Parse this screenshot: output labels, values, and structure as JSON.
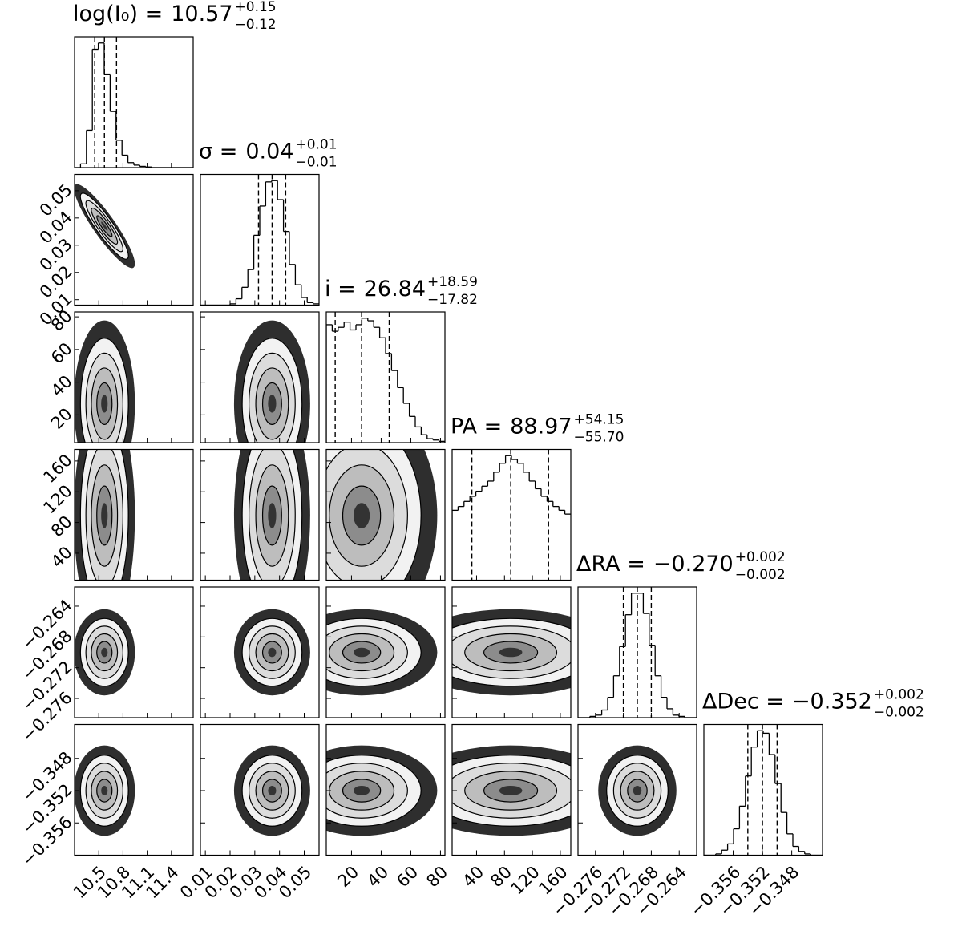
{
  "chart_data": {
    "type": "corner",
    "color": "#000000",
    "parameters": [
      {
        "label": "log(I₀) =",
        "median": 10.57,
        "err_plus": 0.15,
        "err_minus": 0.12,
        "median_label": "10.57",
        "plus_label": "+0.15",
        "minus_label": "−0.12",
        "lim": [
          10.2,
          11.67
        ],
        "ticks": [
          10.5,
          10.8,
          11.1,
          11.4
        ],
        "hist_counts": [
          0,
          3,
          30,
          95,
          100,
          75,
          45,
          22,
          10,
          4,
          2,
          1,
          0.5,
          0,
          0,
          0,
          0,
          0,
          0,
          0
        ]
      },
      {
        "label": "σ =",
        "median": 0.037,
        "err_plus": 0.0055,
        "err_minus": 0.0055,
        "median_label": "0.04",
        "plus_label": "+0.01",
        "minus_label": "−0.01",
        "lim": [
          0.008,
          0.056
        ],
        "ticks": [
          0.01,
          0.02,
          0.03,
          0.04,
          0.05
        ],
        "hist_counts": [
          0,
          0,
          0,
          0,
          0,
          1,
          5,
          14,
          28,
          55,
          78,
          97,
          98,
          83,
          58,
          32,
          16,
          6,
          2,
          1
        ]
      },
      {
        "label": "i =",
        "median": 26.84,
        "err_plus": 18.59,
        "err_minus": 17.82,
        "median_label": "26.84",
        "plus_label": "+18.59",
        "minus_label": "−17.82",
        "lim": [
          3,
          83
        ],
        "ticks": [
          20,
          40,
          60,
          80
        ],
        "hist_counts": [
          90,
          85,
          88,
          92,
          86,
          90,
          95,
          93,
          88,
          80,
          68,
          55,
          42,
          30,
          20,
          12,
          6,
          3,
          2,
          1
        ]
      },
      {
        "label": "PA =",
        "median": 88.97,
        "err_plus": 54.15,
        "err_minus": 55.7,
        "median_label": "88.97",
        "plus_label": "+54.15",
        "minus_label": "−55.70",
        "lim": [
          5,
          175
        ],
        "ticks": [
          40,
          80,
          120,
          160
        ],
        "hist_counts": [
          55,
          58,
          62,
          66,
          70,
          74,
          78,
          85,
          92,
          98,
          95,
          92,
          85,
          78,
          72,
          66,
          62,
          58,
          55,
          52
        ]
      },
      {
        "label": "ΔRA =",
        "median": -0.27,
        "err_plus": 0.002,
        "err_minus": 0.002,
        "median_label": "−0.270",
        "plus_label": "+0.002",
        "minus_label": "−0.002",
        "lim": [
          -0.2785,
          -0.2615
        ],
        "ticks": [
          {
            "value": -0.276,
            "label": "−0.276"
          },
          {
            "value": -0.272,
            "label": "−0.272"
          },
          {
            "value": -0.268,
            "label": "−0.268"
          },
          {
            "value": -0.264,
            "label": "−0.264"
          }
        ],
        "hist_counts": [
          0,
          0,
          1,
          2,
          6,
          16,
          33,
          56,
          81,
          98,
          98,
          82,
          57,
          33,
          16,
          7,
          2,
          1,
          0,
          0
        ]
      },
      {
        "label": "ΔDec =",
        "median": -0.352,
        "err_plus": 0.002,
        "err_minus": 0.002,
        "median_label": "−0.352",
        "plus_label": "+0.002",
        "minus_label": "−0.002",
        "lim": [
          -0.36,
          -0.3438
        ],
        "ticks": [
          {
            "value": -0.356,
            "label": "−0.356"
          },
          {
            "value": -0.352,
            "label": "−0.352"
          },
          {
            "value": -0.348,
            "label": "−0.348"
          }
        ],
        "hist_counts": [
          0,
          0,
          1,
          4,
          9,
          21,
          39,
          63,
          86,
          99,
          97,
          80,
          57,
          34,
          17,
          7,
          3,
          1,
          0,
          0
        ]
      }
    ],
    "correlation": [
      [],
      [
        -0.9
      ],
      [
        0,
        0
      ],
      [
        0,
        0,
        0
      ],
      [
        0,
        0,
        0,
        0
      ],
      [
        0,
        0,
        0,
        0,
        0
      ]
    ]
  }
}
